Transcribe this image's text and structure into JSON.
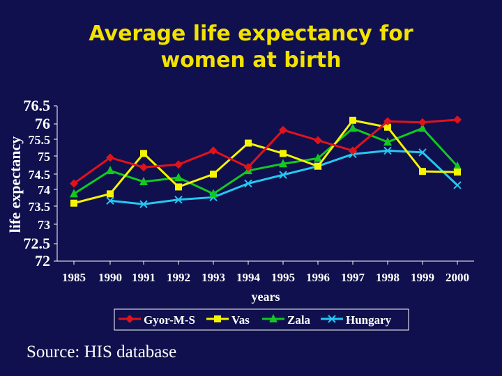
{
  "chart_data": {
    "type": "line",
    "title_lines": [
      "Average life expectancy for",
      "women at birth"
    ],
    "xlabel": "years",
    "ylabel": "life expectancy",
    "x": [
      "1985",
      "1990",
      "1991",
      "1992",
      "1993",
      "1994",
      "1995",
      "1996",
      "1997",
      "1998",
      "1999",
      "2000"
    ],
    "yticks": [
      "72",
      "72.5",
      "73",
      "73.5",
      "74",
      "74.5",
      "75",
      "75.5",
      "76",
      "76.5"
    ],
    "ylim": [
      72,
      76.5
    ],
    "grid": false,
    "legend_position": "bottom",
    "series": [
      {
        "name": "Gyor-M-S",
        "color": "#e0131b",
        "marker": "diamond",
        "values": [
          74.25,
          75.0,
          74.72,
          74.8,
          75.2,
          74.72,
          75.8,
          75.5,
          75.2,
          76.05,
          76.02,
          76.1
        ]
      },
      {
        "name": "Vas",
        "color": "#f5f500",
        "marker": "square",
        "values": [
          73.68,
          73.95,
          75.12,
          74.15,
          74.52,
          75.42,
          75.12,
          74.75,
          76.08,
          75.88,
          74.6,
          74.58
        ]
      },
      {
        "name": "Zala",
        "color": "#12c821",
        "marker": "triangle",
        "values": [
          73.95,
          74.62,
          74.3,
          74.42,
          73.95,
          74.62,
          74.82,
          74.98,
          75.85,
          75.45,
          75.85,
          74.75
        ]
      },
      {
        "name": "Hungary",
        "color": "#24c8f0",
        "marker": "x",
        "values": [
          null,
          73.75,
          73.65,
          73.78,
          73.85,
          74.25,
          74.5,
          74.75,
          75.1,
          75.2,
          75.15,
          74.2
        ]
      }
    ]
  },
  "source": "Source: HIS database"
}
